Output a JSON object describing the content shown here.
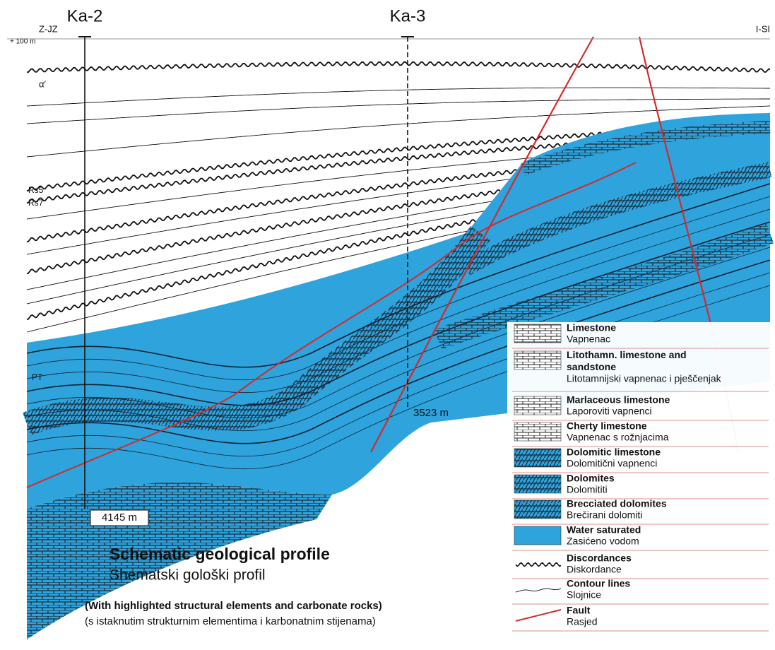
{
  "wells": [
    {
      "name": "Ka-2",
      "depth": "4145 m"
    },
    {
      "name": "Ka-3",
      "depth": "3523 m"
    }
  ],
  "directions": {
    "left": "Z-JZ",
    "right": "I-SI"
  },
  "elevation": "+ 100 m",
  "horizons": [
    "α′",
    "Rs5",
    "Rs7",
    "PT"
  ],
  "title": "Schematic geological profile",
  "title_local": "Shematski gološki profil",
  "subtitle": "(With highlighted structural elements and carbonate rocks)",
  "subtitle_local": "(s istaknutim strukturnim elementima i karbonatnim stijenama)",
  "legend": [
    {
      "name": "Limestone",
      "local": "Vapnenac"
    },
    {
      "name": "Litothamn. limestone and sandstone",
      "local": "Litotamnijski vapnenac i pješčenjak"
    },
    {
      "name": "Marlaceous limestone",
      "local": "Laporoviti vapnenci"
    },
    {
      "name": "Cherty limestone",
      "local": "Vapnenac s rožnjacima"
    },
    {
      "name": "Dolomitic limestone",
      "local": "Dolomitični vapnenci"
    },
    {
      "name": "Dolomites",
      "local": "Dolomititi"
    },
    {
      "name": "Brecciated dolomites",
      "local": "Brečirani dolomiti"
    },
    {
      "name": "Water saturated",
      "local": "Zasićeno vodom"
    },
    {
      "name": "Discordances",
      "local": "Diskordance"
    },
    {
      "name": "Contour lines",
      "local": "Slojnice"
    },
    {
      "name": "Fault",
      "local": "Rasjed"
    }
  ]
}
